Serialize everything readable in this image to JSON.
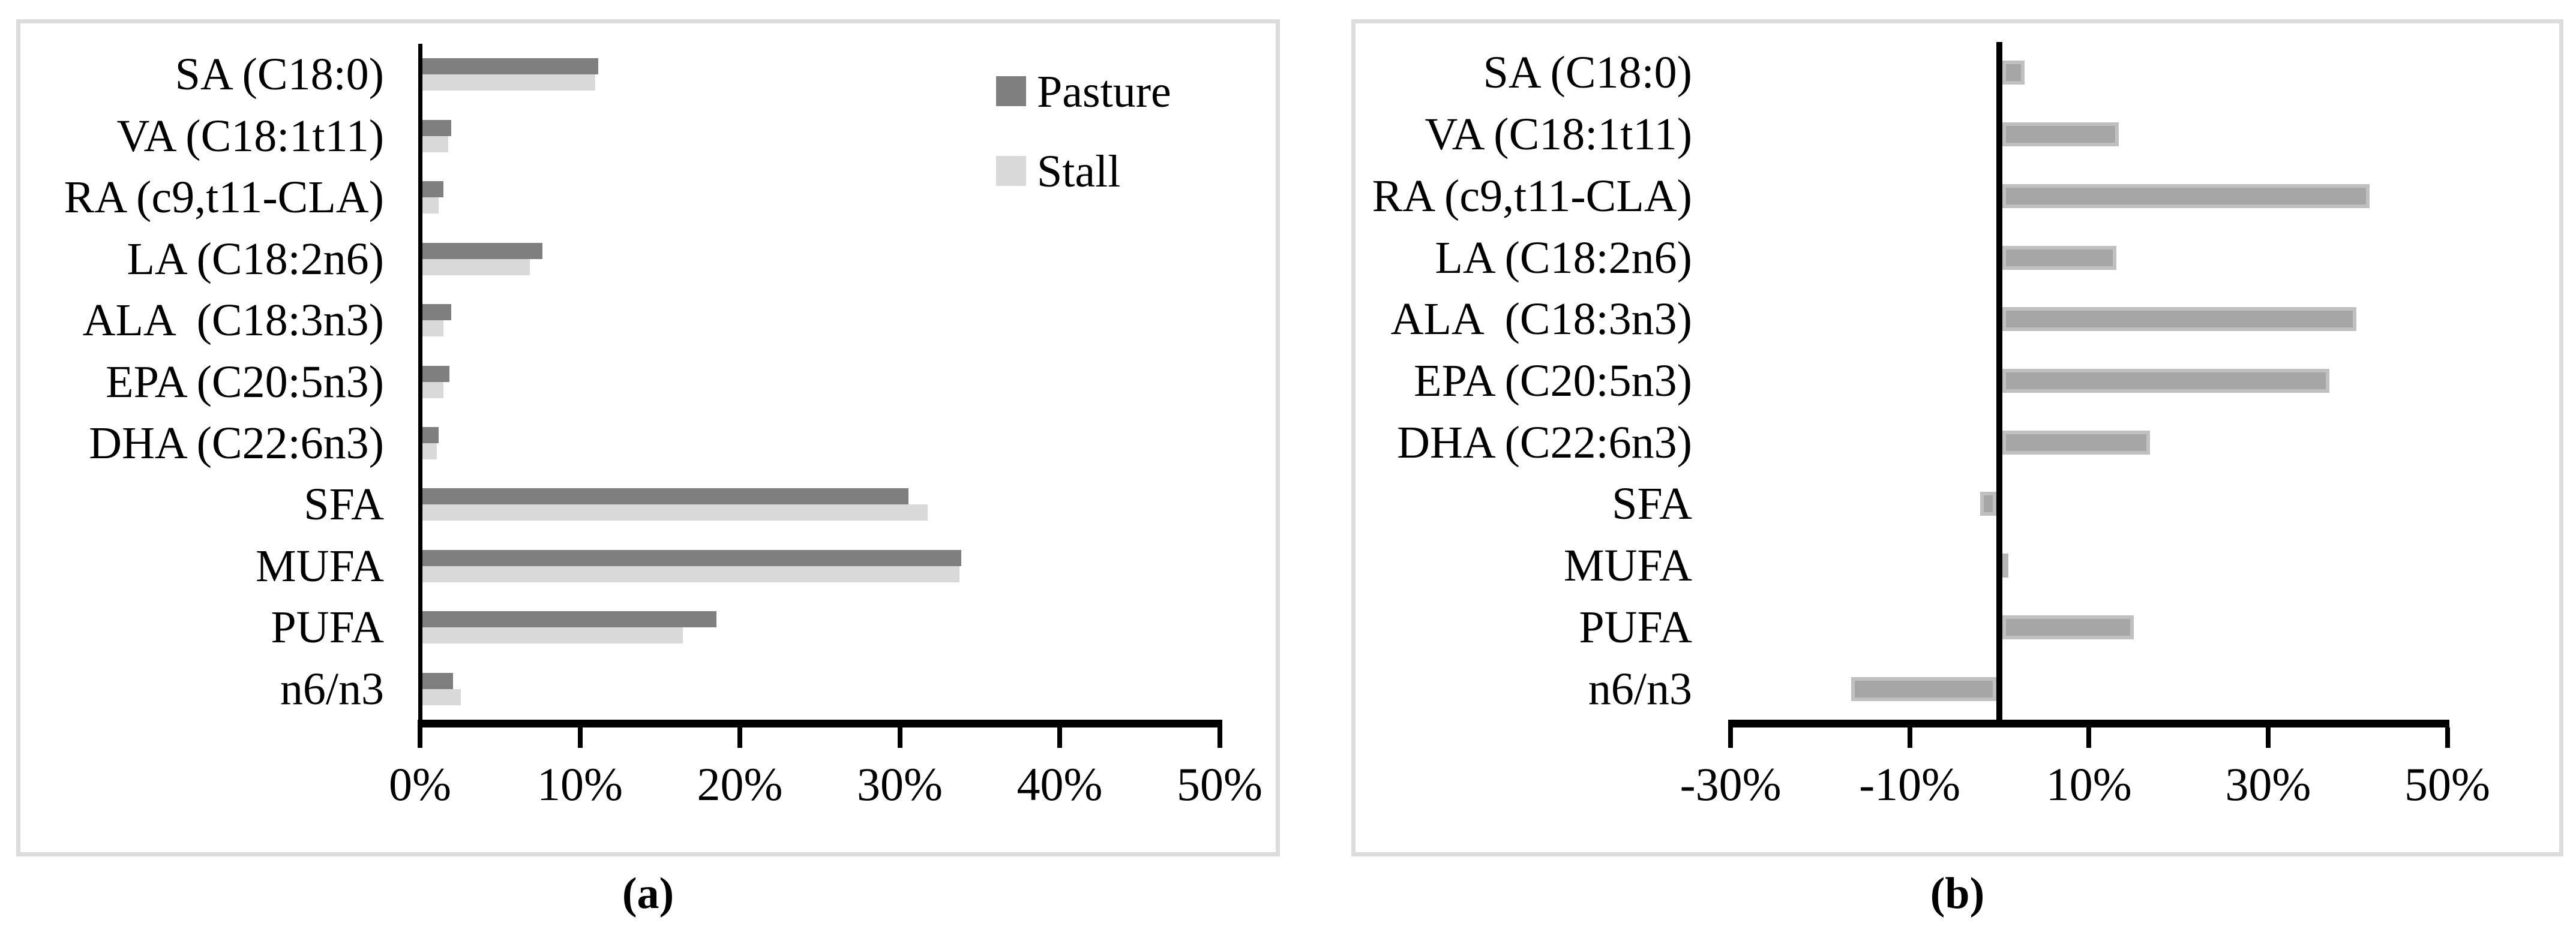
{
  "figure": {
    "captions": {
      "a": "(a)",
      "b": "(b)"
    },
    "panel_border_color": "#dcdcdc",
    "axis_color": "#000000",
    "background_color": "#ffffff"
  },
  "chart_data": [
    {
      "type": "bar",
      "orientation": "horizontal",
      "panel": "a",
      "title": "",
      "categories": [
        "SA (C18:0)",
        "VA (C18:1t11)",
        "RA (c9,t11-CLA)",
        "LA (C18:2n6)",
        "ALA  (C18:3n3)",
        "EPA (C20:5n3)",
        "DHA (C22:6n3)",
        "SFA",
        "MUFA",
        "PUFA",
        "n6/n3"
      ],
      "series": [
        {
          "name": "Pasture",
          "color": "#7f7f7f",
          "values": [
            11.0,
            1.8,
            1.3,
            7.5,
            1.8,
            1.7,
            1.0,
            30.4,
            33.7,
            18.4,
            1.9
          ]
        },
        {
          "name": "Stall",
          "color": "#d9d9d9",
          "values": [
            10.8,
            1.6,
            1.0,
            6.7,
            1.3,
            1.3,
            0.9,
            31.6,
            33.6,
            16.3,
            2.4
          ]
        }
      ],
      "unit": "%",
      "xlim": [
        0,
        50
      ],
      "x_tick_values": [
        0,
        10,
        20,
        30,
        40,
        50
      ],
      "x_tick_labels": [
        "0%",
        "10%",
        "20%",
        "30%",
        "40%",
        "50%"
      ],
      "grid": false,
      "legend_position": "top-right"
    },
    {
      "type": "bar",
      "orientation": "horizontal",
      "panel": "b",
      "title": "",
      "categories": [
        "SA (C18:0)",
        "VA (C18:1t11)",
        "RA (c9,t11-CLA)",
        "LA (C18:2n6)",
        "ALA  (C18:3n3)",
        "EPA (C20:5n3)",
        "DHA (C22:6n3)",
        "SFA",
        "MUFA",
        "PUFA",
        "n6/n3"
      ],
      "series": [
        {
          "color": "#a6a6a6",
          "border_color": "#c0c0c0",
          "values": [
            2.5,
            13.0,
            41.0,
            12.7,
            39.5,
            36.5,
            16.5,
            -1.8,
            0.7,
            14.7,
            -16.2
          ]
        }
      ],
      "unit": "%",
      "xlim": [
        -30,
        50
      ],
      "x_tick_values": [
        -30,
        -10,
        10,
        30,
        50
      ],
      "x_tick_labels": [
        "-30%",
        "-10%",
        "10%",
        "30%",
        "50%"
      ],
      "grid": false,
      "legend_position": "none"
    }
  ]
}
